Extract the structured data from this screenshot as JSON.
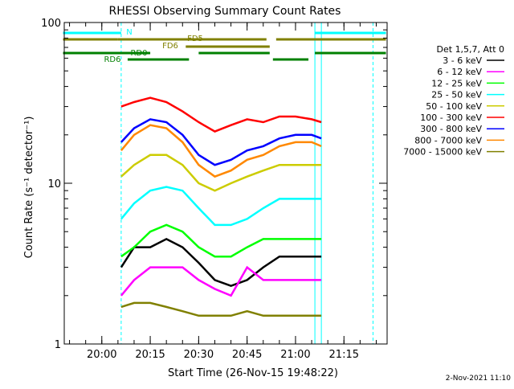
{
  "chart_data": {
    "type": "line",
    "title": "RHESSI Observing Summary Count Rates",
    "xlabel": "Start Time (26-Nov-15 19:48:22)",
    "ylabel": "Count Rate (s⁻¹ detector⁻¹)",
    "y_scale": "log",
    "ylim": [
      1,
      100
    ],
    "xlim": [
      "19:48:22",
      "21:28:22"
    ],
    "x_ticks": [
      "20:00",
      "20:15",
      "20:30",
      "20:45",
      "21:00",
      "21:15"
    ],
    "y_ticks": [
      "1",
      "10",
      "100"
    ],
    "legend": {
      "placement": "right",
      "title": "Det 1,5,7, Att 0",
      "entries": [
        {
          "label": "3 - 6 keV",
          "color": "#000000"
        },
        {
          "label": "6 - 12 keV",
          "color": "#ff00ff"
        },
        {
          "label": "12 - 25 keV",
          "color": "#00ff00"
        },
        {
          "label": "25 - 50 keV",
          "color": "#00ffff"
        },
        {
          "label": "50 - 100 keV",
          "color": "#cccc00"
        },
        {
          "label": "100 - 300 keV",
          "color": "#ff0000"
        },
        {
          "label": "300 - 800 keV",
          "color": "#0000ff"
        },
        {
          "label": "800 - 7000 keV",
          "color": "#ff8800"
        },
        {
          "label": "7000 - 15000 keV",
          "color": "#808000"
        }
      ]
    },
    "series": [
      {
        "name": "3 - 6 keV",
        "color": "#000000",
        "x": [
          "20:06",
          "20:10",
          "20:15",
          "20:20",
          "20:25",
          "20:30",
          "20:35",
          "20:40",
          "20:45",
          "20:50",
          "20:55",
          "21:00",
          "21:05",
          "21:08"
        ],
        "values": [
          3,
          4,
          4,
          4.5,
          4,
          3.2,
          2.5,
          2.3,
          2.5,
          3,
          3.5,
          3.5,
          3.5,
          3.5
        ]
      },
      {
        "name": "6 - 12 keV",
        "color": "#ff00ff",
        "x": [
          "20:06",
          "20:10",
          "20:15",
          "20:20",
          "20:25",
          "20:30",
          "20:35",
          "20:40",
          "20:45",
          "20:50",
          "20:55",
          "21:00",
          "21:05",
          "21:08"
        ],
        "values": [
          2,
          2.5,
          3,
          3,
          3,
          2.5,
          2.2,
          2,
          3,
          2.5,
          2.5,
          2.5,
          2.5,
          2.5
        ]
      },
      {
        "name": "12 - 25 keV",
        "color": "#00ff00",
        "x": [
          "20:06",
          "20:10",
          "20:15",
          "20:20",
          "20:25",
          "20:30",
          "20:35",
          "20:40",
          "20:45",
          "20:50",
          "20:55",
          "21:00",
          "21:05",
          "21:08"
        ],
        "values": [
          3.5,
          4,
          5,
          5.5,
          5,
          4,
          3.5,
          3.5,
          4,
          4.5,
          4.5,
          4.5,
          4.5,
          4.5
        ]
      },
      {
        "name": "25 - 50 keV",
        "color": "#00ffff",
        "x": [
          "20:06",
          "20:10",
          "20:15",
          "20:20",
          "20:25",
          "20:30",
          "20:35",
          "20:40",
          "20:45",
          "20:50",
          "20:55",
          "21:00",
          "21:05",
          "21:08"
        ],
        "values": [
          6,
          7.5,
          9,
          9.5,
          9,
          7,
          5.5,
          5.5,
          6,
          7,
          8,
          8,
          8,
          8
        ]
      },
      {
        "name": "50 - 100 keV",
        "color": "#cccc00",
        "x": [
          "20:06",
          "20:10",
          "20:15",
          "20:20",
          "20:25",
          "20:30",
          "20:35",
          "20:40",
          "20:45",
          "20:50",
          "20:55",
          "21:00",
          "21:05",
          "21:08"
        ],
        "values": [
          11,
          13,
          15,
          15,
          13,
          10,
          9,
          10,
          11,
          12,
          13,
          13,
          13,
          13
        ]
      },
      {
        "name": "100 - 300 keV",
        "color": "#ff0000",
        "x": [
          "20:06",
          "20:10",
          "20:15",
          "20:20",
          "20:25",
          "20:30",
          "20:35",
          "20:40",
          "20:45",
          "20:50",
          "20:55",
          "21:00",
          "21:05",
          "21:08"
        ],
        "values": [
          30,
          32,
          34,
          32,
          28,
          24,
          21,
          23,
          25,
          24,
          26,
          26,
          25,
          24
        ]
      },
      {
        "name": "300 - 800 keV",
        "color": "#0000ff",
        "x": [
          "20:06",
          "20:10",
          "20:15",
          "20:20",
          "20:25",
          "20:30",
          "20:35",
          "20:40",
          "20:45",
          "20:50",
          "20:55",
          "21:00",
          "21:05",
          "21:08"
        ],
        "values": [
          18,
          22,
          25,
          24,
          20,
          15,
          13,
          14,
          16,
          17,
          19,
          20,
          20,
          19
        ]
      },
      {
        "name": "800 - 7000 keV",
        "color": "#ff8800",
        "x": [
          "20:06",
          "20:10",
          "20:15",
          "20:20",
          "20:25",
          "20:30",
          "20:35",
          "20:40",
          "20:45",
          "20:50",
          "20:55",
          "21:00",
          "21:05",
          "21:08"
        ],
        "values": [
          16,
          20,
          23,
          22,
          18,
          13,
          11,
          12,
          14,
          15,
          17,
          18,
          18,
          17
        ]
      },
      {
        "name": "7000 - 15000 keV",
        "color": "#808000",
        "x": [
          "20:06",
          "20:10",
          "20:15",
          "20:20",
          "20:25",
          "20:30",
          "20:35",
          "20:40",
          "20:45",
          "20:50",
          "20:55",
          "21:00",
          "21:05",
          "21:08"
        ],
        "values": [
          1.7,
          1.8,
          1.8,
          1.7,
          1.6,
          1.5,
          1.5,
          1.5,
          1.6,
          1.5,
          1.5,
          1.5,
          1.5,
          1.5
        ]
      }
    ],
    "vertical_markers": [
      {
        "time": "20:06",
        "color": "#00ffff",
        "style": "dashed"
      },
      {
        "time": "21:06",
        "color": "#00ffff",
        "style": "solid"
      },
      {
        "time": "21:08",
        "color": "#00ffff",
        "style": "solid"
      },
      {
        "time": "21:24",
        "color": "#00ffff",
        "style": "dashed"
      }
    ],
    "flag_bars": [
      {
        "label": "N",
        "color": "#00ffff",
        "segments": [
          [
            "19:48",
            "20:06"
          ],
          [
            "21:06",
            "21:28"
          ]
        ]
      },
      {
        "label": "FD5",
        "color": "#808000",
        "segments": [
          [
            "19:48",
            "20:05"
          ],
          [
            "20:05",
            "20:51"
          ],
          [
            "20:54",
            "21:28"
          ]
        ]
      },
      {
        "label": "FD6",
        "color": "#808000",
        "segments": [
          [
            "20:26",
            "20:52"
          ]
        ]
      },
      {
        "label": "RD0",
        "color": "#008000",
        "segments": [
          [
            "19:48",
            "20:15"
          ],
          [
            "20:30",
            "20:52"
          ],
          [
            "21:06",
            "21:28"
          ]
        ]
      },
      {
        "label": "RD6",
        "color": "#008000",
        "segments": [
          [
            "20:08",
            "20:27"
          ],
          [
            "20:53",
            "21:04"
          ]
        ]
      }
    ]
  },
  "footer": {
    "date_stamp": "2-Nov-2021 11:10"
  }
}
